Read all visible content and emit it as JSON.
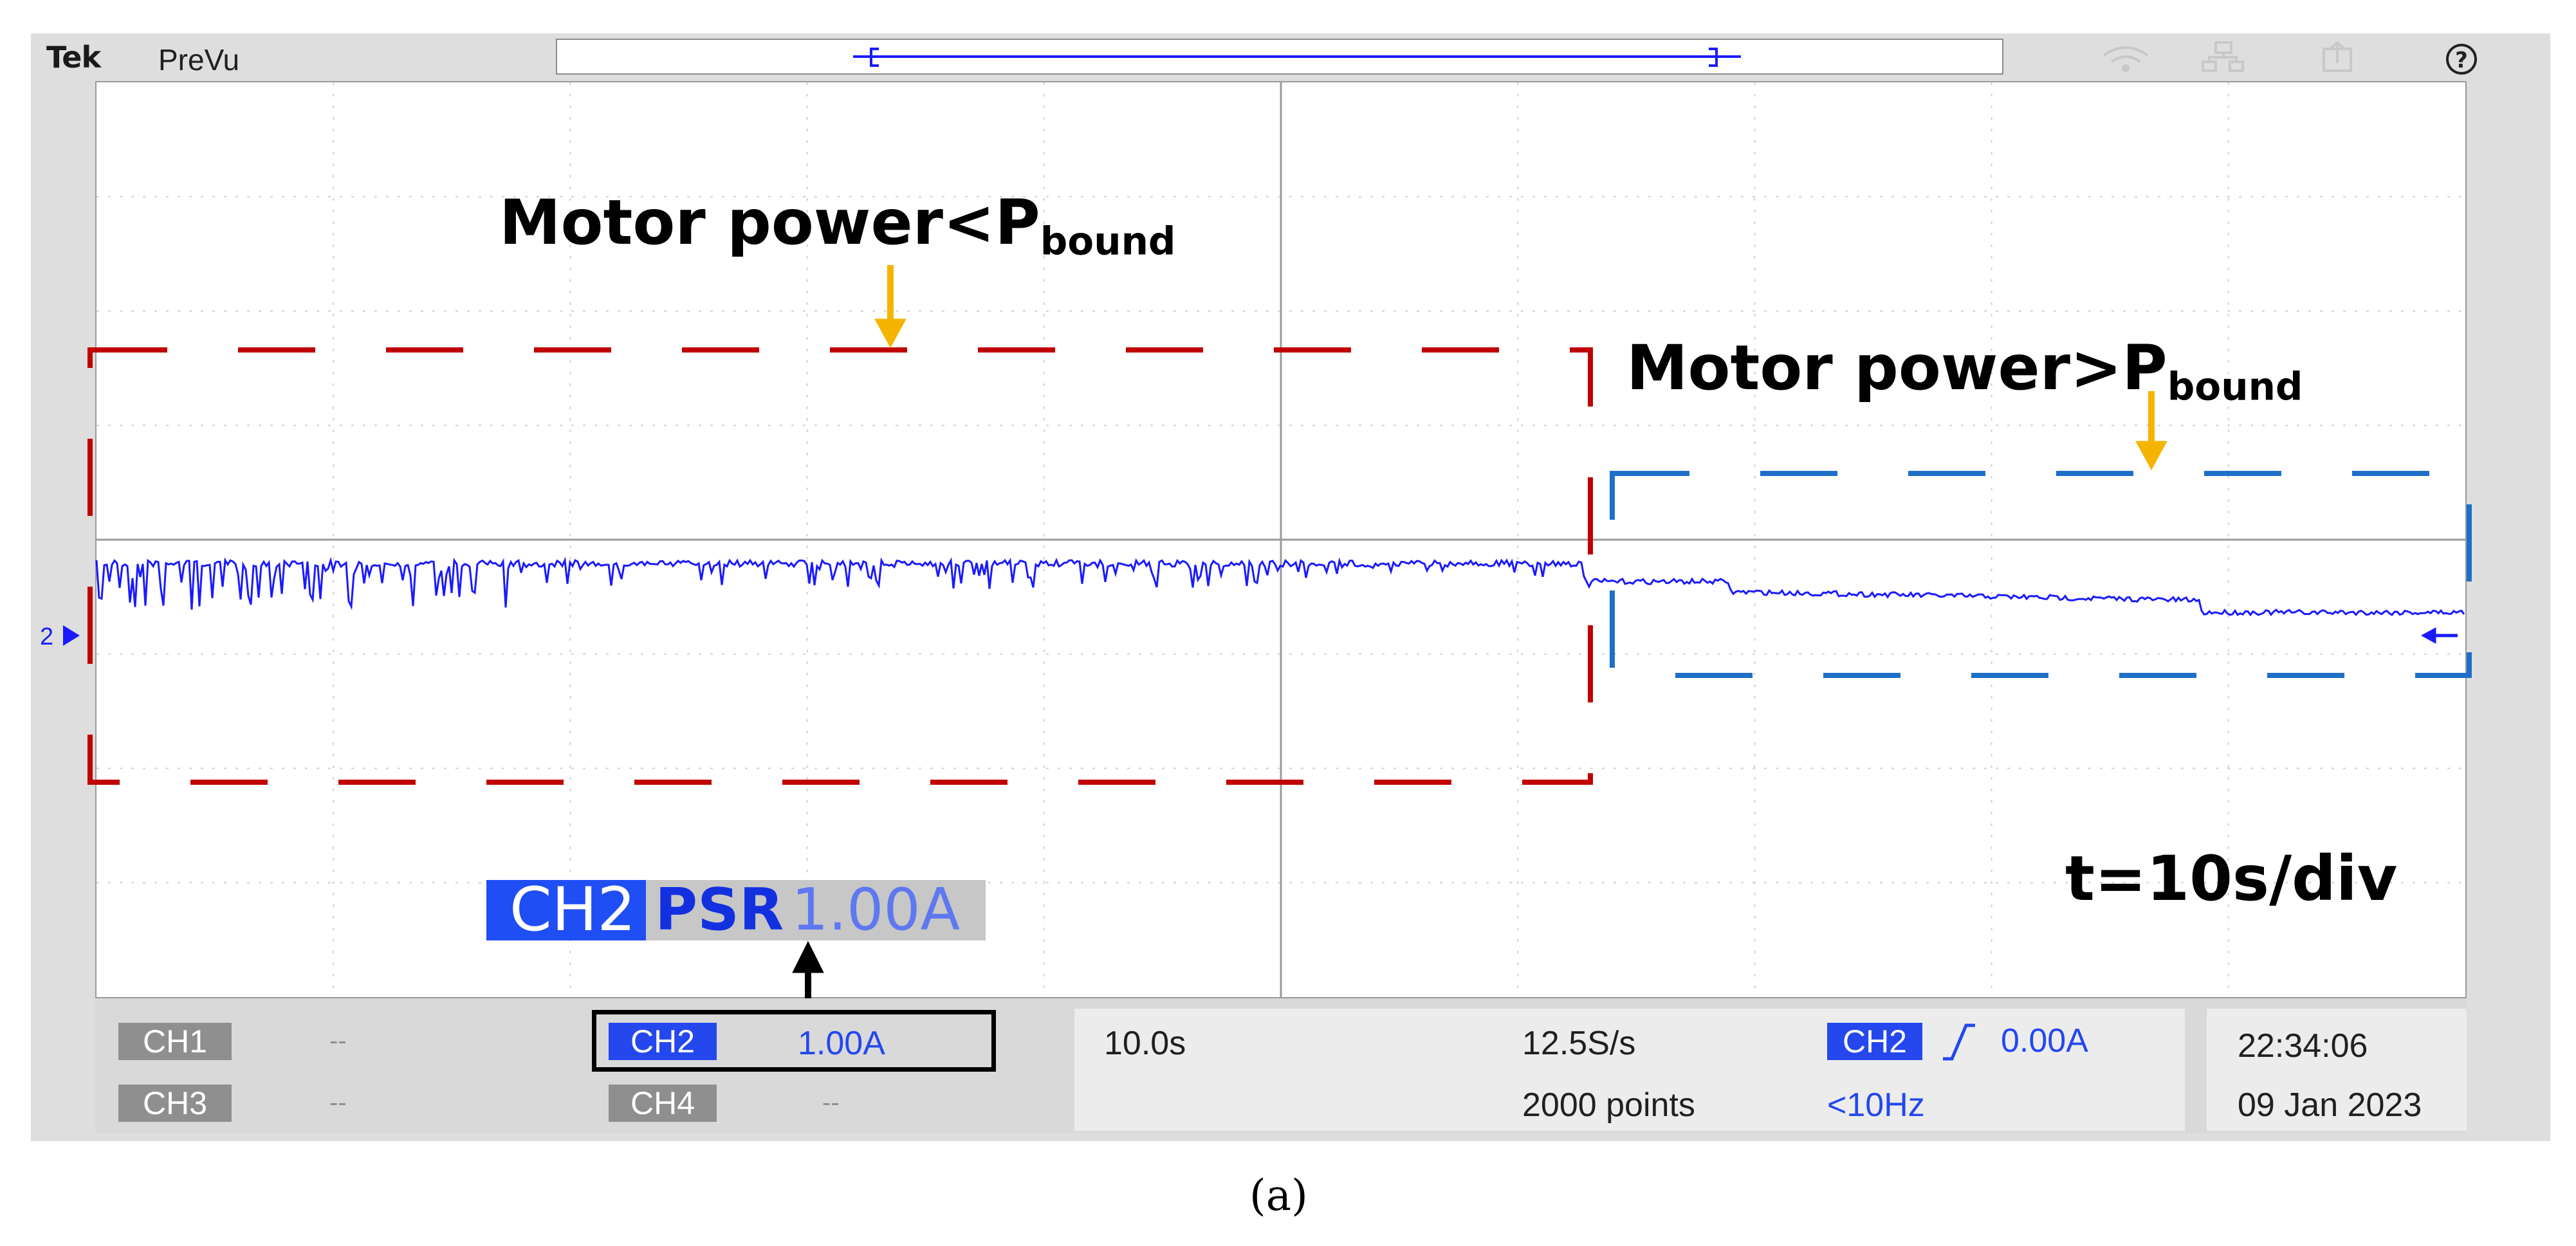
{
  "top_bar": {
    "brand": "Tek",
    "mode_label": "PreVu",
    "icons": [
      "wifi-icon",
      "network-icon",
      "export-icon",
      "help-icon"
    ]
  },
  "annotations": {
    "low": {
      "prefix": "Motor power<P",
      "sub": "bound"
    },
    "high": {
      "prefix": "Motor power>P",
      "sub": "bound"
    },
    "timebase": "t=10s/div"
  },
  "channel_overlay": {
    "name": "CH2",
    "mode": "PSR",
    "scale": "1.00A"
  },
  "status": {
    "ch1": {
      "label": "CH1",
      "value": "--"
    },
    "ch2": {
      "label": "CH2",
      "value": "1.00A"
    },
    "ch3": {
      "label": "CH3",
      "value": "--"
    },
    "ch4": {
      "label": "CH4",
      "value": "--"
    },
    "horizontal": "10.0s",
    "sample_rate": "12.5S/s",
    "record_length": "2000 points",
    "trigger": {
      "source": "CH2",
      "level": "0.00A",
      "filter": "<10Hz"
    },
    "time": "22:34:06",
    "date": "09 Jan 2023"
  },
  "marker_label": "2",
  "caption": "(a)",
  "colors": {
    "trace": "#1a1aff",
    "low_region": "#c00000",
    "high_region": "#1e6fc8",
    "arrow": "#f5b400",
    "accent": "#2448ee"
  }
}
